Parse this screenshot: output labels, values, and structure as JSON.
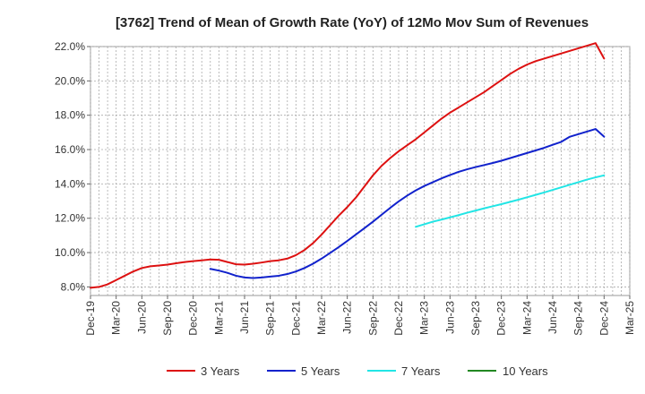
{
  "chart_data": {
    "type": "line",
    "title": "[3762]  Trend of Mean of Growth Rate (YoY) of 12Mo Mov Sum of Revenues",
    "xlabel": "",
    "ylabel": "",
    "ylim": [
      7.5,
      22.0
    ],
    "yticks": [
      8.0,
      10.0,
      12.0,
      14.0,
      16.0,
      18.0,
      20.0,
      22.0
    ],
    "ytick_labels": [
      "8.0%",
      "10.0%",
      "12.0%",
      "14.0%",
      "16.0%",
      "18.0%",
      "20.0%",
      "22.0%"
    ],
    "x_index_range": [
      0,
      63
    ],
    "xtick_index": [
      0,
      3,
      6,
      9,
      12,
      15,
      18,
      21,
      24,
      27,
      30,
      33,
      36,
      39,
      42,
      45,
      48,
      51,
      54,
      57,
      60,
      63
    ],
    "xtick_labels": [
      "Dec-19",
      "Mar-20",
      "Jun-20",
      "Sep-20",
      "Dec-20",
      "Mar-21",
      "Jun-21",
      "Sep-21",
      "Dec-21",
      "Mar-22",
      "Jun-22",
      "Sep-22",
      "Dec-22",
      "Mar-23",
      "Jun-23",
      "Sep-23",
      "Dec-23",
      "Mar-24",
      "Jun-24",
      "Sep-24",
      "Dec-24",
      "Mar-25"
    ],
    "grid": true,
    "legend_position": "bottom",
    "series": [
      {
        "name": "3 Years",
        "color": "#dd1111",
        "x": [
          0,
          1,
          2,
          3,
          4,
          5,
          6,
          7,
          8,
          9,
          10,
          11,
          12,
          13,
          14,
          15,
          16,
          17,
          18,
          19,
          20,
          21,
          22,
          23,
          24,
          25,
          26,
          27,
          28,
          29,
          30,
          31,
          32,
          33,
          34,
          35,
          36,
          37,
          38,
          39,
          40,
          41,
          42,
          43,
          44,
          45,
          46,
          47,
          48,
          49,
          50,
          51,
          52,
          53,
          54,
          55,
          56,
          57,
          58,
          59,
          60
        ],
        "values": [
          7.95,
          8.0,
          8.15,
          8.4,
          8.65,
          8.9,
          9.1,
          9.2,
          9.25,
          9.3,
          9.38,
          9.45,
          9.5,
          9.55,
          9.6,
          9.58,
          9.45,
          9.32,
          9.3,
          9.35,
          9.42,
          9.5,
          9.55,
          9.65,
          9.85,
          10.15,
          10.55,
          11.05,
          11.6,
          12.15,
          12.65,
          13.2,
          13.85,
          14.5,
          15.05,
          15.5,
          15.9,
          16.25,
          16.6,
          17.0,
          17.4,
          17.8,
          18.15,
          18.45,
          18.75,
          19.05,
          19.35,
          19.7,
          20.05,
          20.4,
          20.7,
          20.95,
          21.15,
          21.3,
          21.45,
          21.6,
          21.75,
          21.9,
          22.05,
          22.2,
          21.3
        ]
      },
      {
        "name": "5 Years",
        "color": "#1122cc",
        "x": [
          14,
          15,
          16,
          17,
          18,
          19,
          20,
          21,
          22,
          23,
          24,
          25,
          26,
          27,
          28,
          29,
          30,
          31,
          32,
          33,
          34,
          35,
          36,
          37,
          38,
          39,
          40,
          41,
          42,
          43,
          44,
          45,
          46,
          47,
          48,
          49,
          50,
          51,
          52,
          53,
          54,
          55,
          56,
          57,
          58,
          59,
          60
        ],
        "values": [
          9.05,
          8.95,
          8.82,
          8.65,
          8.55,
          8.52,
          8.55,
          8.6,
          8.65,
          8.75,
          8.9,
          9.1,
          9.35,
          9.65,
          9.98,
          10.32,
          10.68,
          11.05,
          11.42,
          11.8,
          12.2,
          12.6,
          12.98,
          13.32,
          13.62,
          13.88,
          14.1,
          14.32,
          14.52,
          14.7,
          14.85,
          14.98,
          15.1,
          15.22,
          15.35,
          15.5,
          15.65,
          15.8,
          15.95,
          16.1,
          16.28,
          16.45,
          16.75,
          16.9,
          17.05,
          17.2,
          16.75
        ]
      },
      {
        "name": "7 Years",
        "color": "#22e5e5",
        "x": [
          38,
          39,
          40,
          41,
          42,
          43,
          44,
          45,
          46,
          47,
          48,
          49,
          50,
          51,
          52,
          53,
          54,
          55,
          56,
          57,
          58,
          59,
          60
        ],
        "values": [
          11.5,
          11.65,
          11.8,
          11.92,
          12.05,
          12.18,
          12.32,
          12.45,
          12.58,
          12.7,
          12.82,
          12.95,
          13.08,
          13.22,
          13.36,
          13.5,
          13.65,
          13.8,
          13.95,
          14.1,
          14.25,
          14.38,
          14.5
        ]
      },
      {
        "name": "10 Years",
        "color": "#228822",
        "x": [],
        "values": []
      }
    ]
  }
}
